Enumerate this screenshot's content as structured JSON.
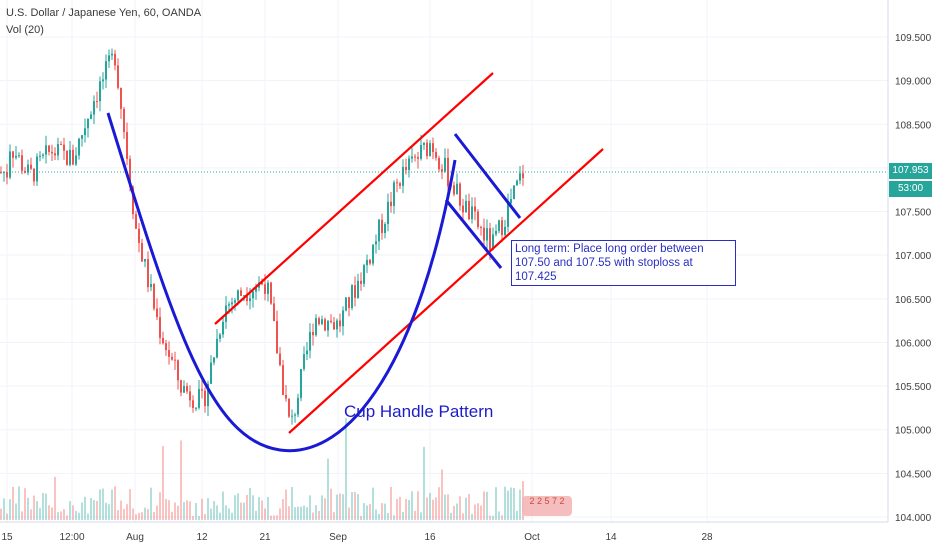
{
  "header": {
    "title": "U.S. Dollar / Japanese Yen, 60, OANDA",
    "volume_label": "Vol (20)"
  },
  "price_tag": {
    "price": "107.953",
    "countdown": "53:00"
  },
  "note": {
    "text": "Long term: Place long order between 107.50 and 107.55 with stoploss at 107.425"
  },
  "pattern_label": "Cup Handle Pattern",
  "logo_badge": {
    "text": "2 2 5  7 2"
  },
  "colors": {
    "up": "#26a69a",
    "down": "#ef5350",
    "trendline": "#ff0000",
    "cup": "#1a1ad4",
    "note_border": "#2a2fbf",
    "grid": "#f0f3fa"
  },
  "chart_data": {
    "type": "candlestick",
    "title": "U.S. Dollar / Japanese Yen, 60, OANDA",
    "x_ticks": [
      "15",
      "12:00",
      "Aug",
      "12",
      "21",
      "Sep",
      "16",
      "Oct",
      "14",
      "28"
    ],
    "y_ticks": [
      "104.000",
      "104.500",
      "105.000",
      "105.500",
      "106.000",
      "106.500",
      "107.000",
      "107.500",
      "108.000",
      "108.500",
      "109.000",
      "109.500"
    ],
    "ylim": [
      104.0,
      109.8
    ],
    "last_price": 107.953,
    "price_path_x": [
      "15",
      "12:00",
      "Aug",
      "12",
      "21",
      "Sep",
      "16",
      "Oct"
    ],
    "price_path": [
      {
        "x": "15",
        "y": 108.3
      },
      {
        "x": "",
        "y": 107.9
      },
      {
        "x": "",
        "y": 108.2
      },
      {
        "x": "12:00",
        "y": 108.1
      },
      {
        "x": "",
        "y": 108.8
      },
      {
        "x": "",
        "y": 109.3
      },
      {
        "x": "Aug",
        "y": 107.3
      },
      {
        "x": "",
        "y": 106.2
      },
      {
        "x": "",
        "y": 105.5
      },
      {
        "x": "12",
        "y": 105.3
      },
      {
        "x": "",
        "y": 106.4
      },
      {
        "x": "",
        "y": 106.6
      },
      {
        "x": "21",
        "y": 106.7
      },
      {
        "x": "",
        "y": 105.0
      },
      {
        "x": "",
        "y": 106.3
      },
      {
        "x": "Sep",
        "y": 106.2
      },
      {
        "x": "",
        "y": 107.0
      },
      {
        "x": "",
        "y": 107.9
      },
      {
        "x": "16",
        "y": 108.3
      },
      {
        "x": "",
        "y": 107.6
      },
      {
        "x": "",
        "y": 107.1
      },
      {
        "x": "Oct",
        "y": 107.95
      }
    ],
    "annotations": [
      "Cup Handle Pattern",
      "Long term: Place long order between 107.50 and 107.55 with stoploss at 107.425"
    ]
  }
}
